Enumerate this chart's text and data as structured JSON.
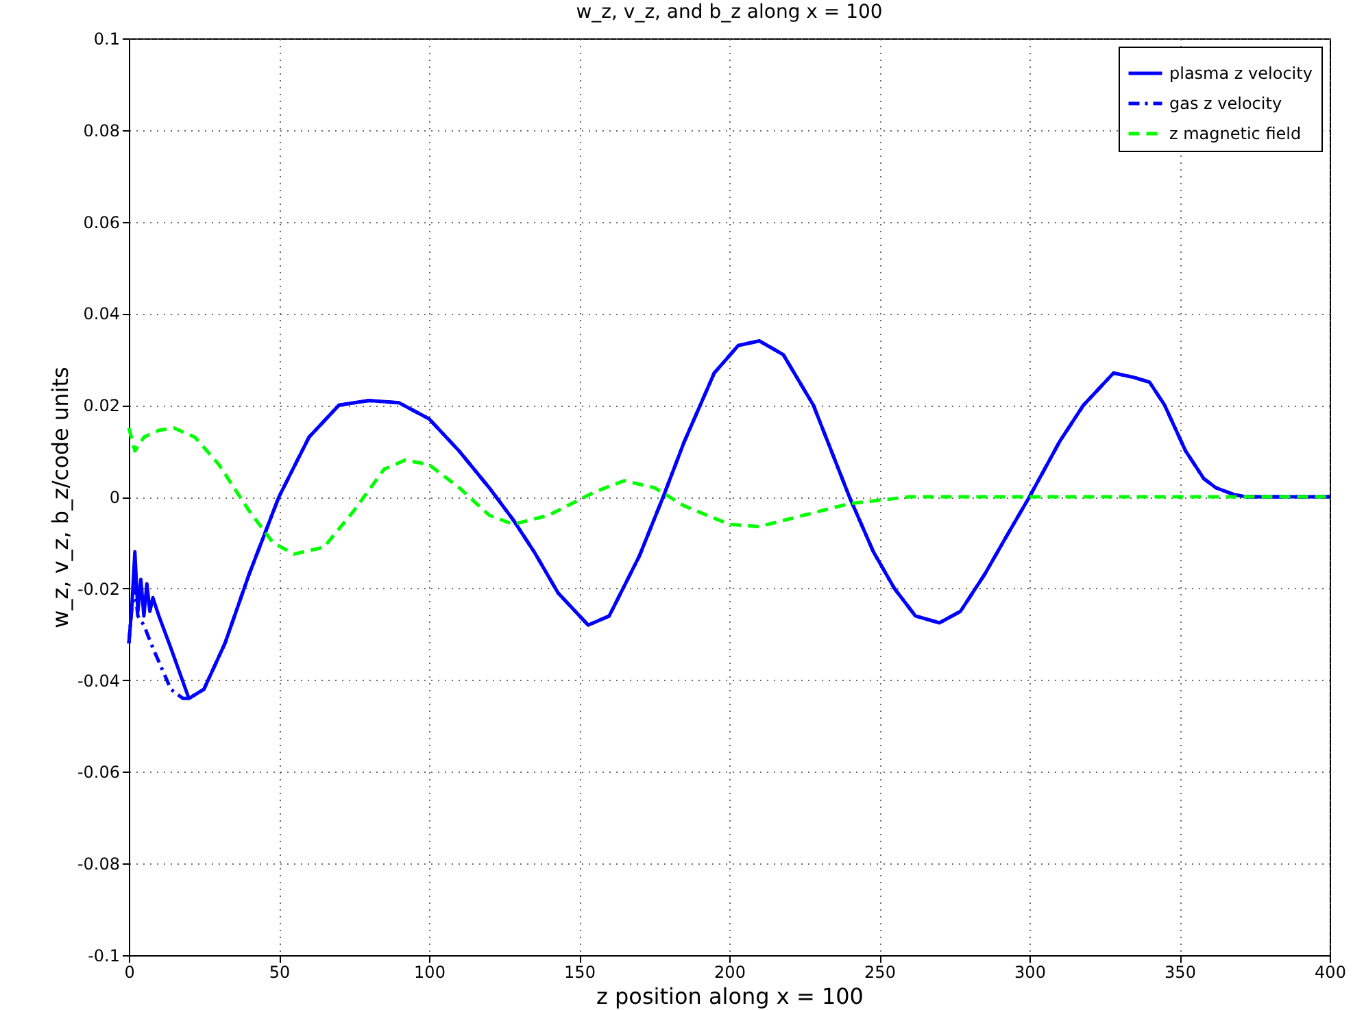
{
  "chart_data": {
    "type": "line",
    "title": "w_z, v_z, and b_z along x = 100",
    "xlabel": "z position along x = 100",
    "ylabel": "w_z, v_z, b_z/code units",
    "xlim": [
      0,
      400
    ],
    "xticks": [
      0,
      50,
      100,
      150,
      200,
      250,
      300,
      350,
      400
    ],
    "ylim": [
      -0.1,
      0.1
    ],
    "yticks": [
      -0.1,
      -0.08,
      -0.06,
      -0.04,
      -0.02,
      0,
      0.02,
      0.04,
      0.06,
      0.08,
      0.1
    ],
    "grid": true,
    "legend": "top right",
    "marker": "none",
    "series": [
      {
        "name": "plasma z velocity",
        "color": "#0000ff",
        "line_style": "solid",
        "x": [
          0,
          1,
          2,
          3,
          4,
          5,
          6,
          7,
          8,
          10,
          14,
          20,
          25,
          32,
          40,
          50,
          60,
          70,
          80,
          90,
          100,
          110,
          120,
          128,
          135,
          143,
          153,
          160,
          170,
          178,
          185,
          195,
          203,
          210,
          218,
          228,
          240,
          248,
          255,
          262,
          270,
          277,
          285,
          292,
          300,
          310,
          318,
          328,
          335,
          340,
          345,
          352,
          358,
          362,
          368,
          372,
          385,
          400
        ],
        "values": [
          -0.032,
          -0.024,
          -0.012,
          -0.025,
          -0.018,
          -0.026,
          -0.019,
          -0.025,
          -0.022,
          -0.026,
          -0.033,
          -0.044,
          -0.042,
          -0.032,
          -0.017,
          0,
          0.013,
          0.02,
          0.021,
          0.0205,
          0.017,
          0.01,
          0.002,
          -0.005,
          -0.012,
          -0.021,
          -0.028,
          -0.026,
          -0.013,
          0,
          0.012,
          0.027,
          0.033,
          0.034,
          0.031,
          0.02,
          0,
          -0.012,
          -0.02,
          -0.026,
          -0.0275,
          -0.025,
          -0.017,
          -0.009,
          0,
          0.012,
          0.02,
          0.027,
          0.026,
          0.025,
          0.02,
          0.01,
          0.004,
          0.002,
          0.0005,
          0,
          0,
          0
        ]
      },
      {
        "name": "gas z velocity",
        "color": "#0000ff",
        "line_style": "dashdot",
        "x": [
          0,
          1,
          2,
          3,
          5,
          8,
          10,
          14,
          18,
          20,
          25,
          32,
          40,
          50,
          60,
          70,
          80,
          90,
          100,
          110,
          120,
          128,
          135,
          143,
          153,
          160,
          170,
          178,
          185,
          195,
          203,
          210,
          218,
          228,
          240,
          248,
          255,
          262,
          270,
          277,
          285,
          292,
          300,
          310,
          318,
          328,
          335,
          340,
          345,
          352,
          358,
          362,
          368,
          372,
          385,
          400
        ],
        "values": [
          -0.032,
          -0.024,
          -0.02,
          -0.026,
          -0.028,
          -0.033,
          -0.036,
          -0.042,
          -0.044,
          -0.044,
          -0.042,
          -0.032,
          -0.017,
          0,
          0.013,
          0.02,
          0.021,
          0.0205,
          0.017,
          0.01,
          0.002,
          -0.005,
          -0.012,
          -0.021,
          -0.028,
          -0.026,
          -0.013,
          0,
          0.012,
          0.027,
          0.033,
          0.034,
          0.031,
          0.02,
          0,
          -0.012,
          -0.02,
          -0.026,
          -0.0275,
          -0.025,
          -0.017,
          -0.009,
          0,
          0.012,
          0.02,
          0.027,
          0.026,
          0.025,
          0.02,
          0.01,
          0.004,
          0.002,
          0.0005,
          0,
          0,
          0
        ]
      },
      {
        "name": "z magnetic field",
        "color": "#00ff00",
        "line_style": "dashed",
        "x": [
          0,
          2,
          5,
          10,
          15,
          22,
          30,
          40,
          48,
          55,
          65,
          75,
          85,
          92,
          100,
          110,
          120,
          128,
          140,
          155,
          165,
          175,
          185,
          200,
          210,
          225,
          240,
          260,
          300,
          350,
          400
        ],
        "values": [
          0.015,
          0.01,
          0.013,
          0.0145,
          0.015,
          0.013,
          0.007,
          -0.003,
          -0.01,
          -0.0125,
          -0.011,
          -0.003,
          0.006,
          0.008,
          0.007,
          0.002,
          -0.004,
          -0.006,
          -0.004,
          0.001,
          0.0035,
          0.002,
          -0.002,
          -0.006,
          -0.0065,
          -0.004,
          -0.0015,
          0,
          0,
          0,
          0
        ]
      }
    ]
  }
}
